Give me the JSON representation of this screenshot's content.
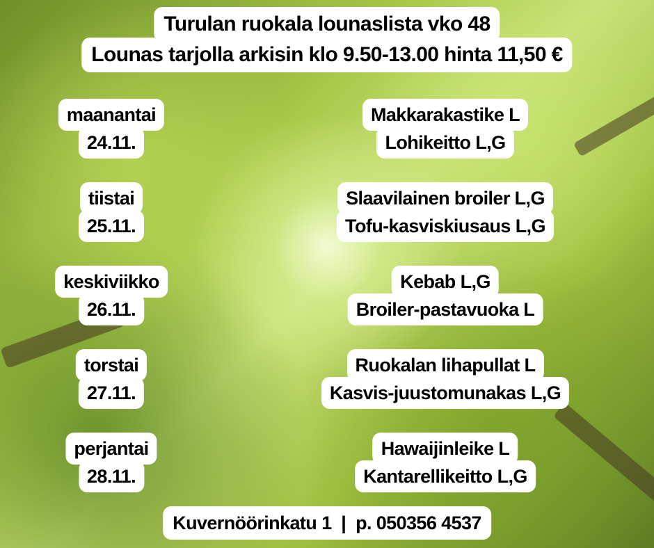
{
  "header": {
    "title": "Turulan ruokala lounaslista vko 48",
    "subtitle": "Lounas tarjolla arkisin klo 9.50-13.00 hinta 11,50 €"
  },
  "days": [
    {
      "day": "maanantai",
      "date": "24.11.",
      "dish1": "Makkarakastike L",
      "dish2": "Lohikeitto L,G"
    },
    {
      "day": "tiistai",
      "date": "25.11.",
      "dish1": "Slaavilainen broiler  L,G",
      "dish2": "Tofu-kasviskiusaus L,G"
    },
    {
      "day": "keskiviikko",
      "date": "26.11.",
      "dish1": "Kebab L,G",
      "dish2": "Broiler-pastavuoka L"
    },
    {
      "day": "torstai",
      "date": "27.11.",
      "dish1": "Ruokalan lihapullat  L",
      "dish2": "Kasvis-juustomunakas L,G"
    },
    {
      "day": "perjantai",
      "date": "28.11.",
      "dish1": "Hawaijinleike L",
      "dish2": "Kantarellikeitto L,G"
    }
  ],
  "footer": {
    "contact": "Kuvernöörinkatu 1  |  p. 050356 4537"
  }
}
